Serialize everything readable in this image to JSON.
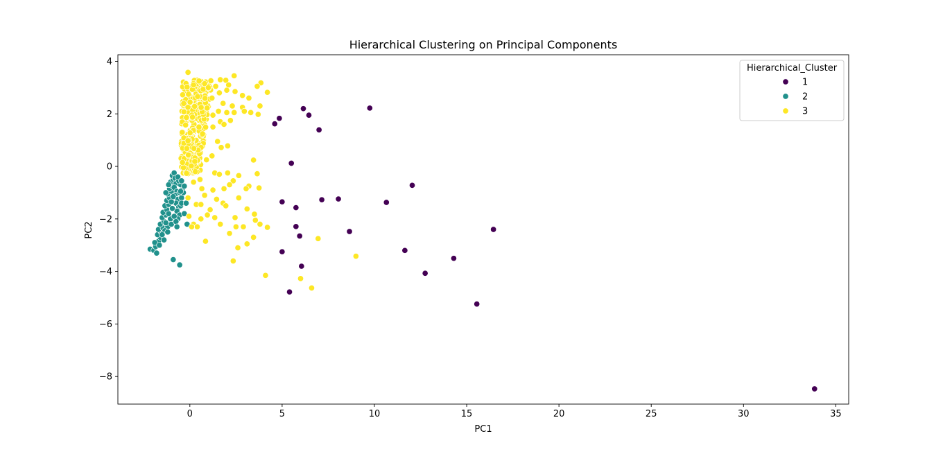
{
  "chart_data": {
    "type": "scatter",
    "title": "Hierarchical Clustering on Principal Components",
    "xlabel": "PC1",
    "ylabel": "PC2",
    "xlim": [
      -3.9,
      35.7
    ],
    "ylim": [
      -9.05,
      4.25
    ],
    "xticks": [
      0,
      5,
      10,
      15,
      20,
      25,
      30,
      35
    ],
    "yticks": [
      -8,
      -6,
      -4,
      -2,
      0,
      2,
      4
    ],
    "xtick_labels": [
      "0",
      "5",
      "10",
      "15",
      "20",
      "25",
      "30",
      "35"
    ],
    "ytick_labels": [
      "−8",
      "−6",
      "−4",
      "−2",
      "0",
      "2",
      "4"
    ],
    "grid": false,
    "legend": {
      "title": "Hierarchical_Cluster",
      "placement": "top-right",
      "entries": [
        "1",
        "2",
        "3"
      ]
    },
    "series": [
      {
        "name": "1",
        "color": "#440154",
        "points": [
          [
            4.6,
            1.62
          ],
          [
            4.85,
            1.83
          ],
          [
            6.15,
            2.2
          ],
          [
            6.45,
            1.95
          ],
          [
            7.0,
            1.39
          ],
          [
            9.75,
            2.22
          ],
          [
            5.5,
            0.12
          ],
          [
            12.05,
            -0.72
          ],
          [
            10.65,
            -1.37
          ],
          [
            8.05,
            -1.24
          ],
          [
            7.15,
            -1.27
          ],
          [
            5.0,
            -1.35
          ],
          [
            5.75,
            -1.57
          ],
          [
            5.75,
            -2.29
          ],
          [
            5.95,
            -2.65
          ],
          [
            8.65,
            -2.48
          ],
          [
            16.45,
            -2.4
          ],
          [
            11.65,
            -3.2
          ],
          [
            5.0,
            -3.25
          ],
          [
            14.3,
            -3.5
          ],
          [
            6.05,
            -3.8
          ],
          [
            12.75,
            -4.07
          ],
          [
            5.4,
            -4.78
          ],
          [
            15.55,
            -5.24
          ],
          [
            33.85,
            -8.47
          ]
        ]
      },
      {
        "name": "2",
        "color": "#21918c",
        "points": [
          [
            -2.15,
            -3.15
          ],
          [
            -1.95,
            -3.2
          ],
          [
            -1.8,
            -3.3
          ],
          [
            -1.85,
            -3.05
          ],
          [
            -1.7,
            -2.85
          ],
          [
            -1.9,
            -2.9
          ],
          [
            -1.6,
            -2.7
          ],
          [
            -1.75,
            -2.6
          ],
          [
            -1.55,
            -2.5
          ],
          [
            -1.7,
            -2.4
          ],
          [
            -1.45,
            -2.35
          ],
          [
            -1.6,
            -2.2
          ],
          [
            -1.4,
            -2.1
          ],
          [
            -1.5,
            -1.95
          ],
          [
            -1.3,
            -1.85
          ],
          [
            -1.45,
            -1.75
          ],
          [
            -1.25,
            -1.65
          ],
          [
            -1.35,
            -1.5
          ],
          [
            -1.15,
            -1.45
          ],
          [
            -1.25,
            -1.3
          ],
          [
            -1.1,
            -1.2
          ],
          [
            -1.2,
            -1.05
          ],
          [
            -1.0,
            -0.95
          ],
          [
            -1.1,
            -0.85
          ],
          [
            -0.95,
            -0.75
          ],
          [
            -1.05,
            -0.6
          ],
          [
            -0.9,
            -0.5
          ],
          [
            -0.95,
            -0.35
          ],
          [
            -0.85,
            -0.25
          ],
          [
            -0.8,
            -0.45
          ],
          [
            -0.75,
            -0.65
          ],
          [
            -0.85,
            -0.8
          ],
          [
            -0.7,
            -0.95
          ],
          [
            -0.8,
            -1.1
          ],
          [
            -0.65,
            -1.25
          ],
          [
            -0.75,
            -1.4
          ],
          [
            -0.6,
            -1.55
          ],
          [
            -0.7,
            -1.7
          ],
          [
            -0.55,
            -1.85
          ],
          [
            -0.65,
            -2.0
          ],
          [
            -0.5,
            -1.5
          ],
          [
            -0.45,
            -1.2
          ],
          [
            -0.55,
            -1.0
          ],
          [
            -0.4,
            -0.85
          ],
          [
            -0.5,
            -0.7
          ],
          [
            -0.35,
            -1.0
          ],
          [
            -0.45,
            -1.4
          ],
          [
            -0.6,
            -0.55
          ],
          [
            -0.65,
            -0.4
          ],
          [
            -1.2,
            -2.3
          ],
          [
            -1.35,
            -2.45
          ],
          [
            -1.05,
            -2.0
          ],
          [
            -1.15,
            -1.8
          ],
          [
            -0.95,
            -1.6
          ],
          [
            -1.0,
            -1.35
          ],
          [
            -0.9,
            -1.15
          ],
          [
            -1.3,
            -2.15
          ],
          [
            -1.5,
            -2.6
          ],
          [
            -1.65,
            -3.0
          ],
          [
            -1.0,
            -2.2
          ],
          [
            -0.85,
            -1.9
          ],
          [
            -0.75,
            -2.1
          ],
          [
            -0.7,
            -2.3
          ],
          [
            -0.3,
            -1.8
          ],
          [
            -0.2,
            -1.4
          ],
          [
            -0.15,
            -2.2
          ],
          [
            -1.2,
            -2.5
          ],
          [
            -1.4,
            -2.8
          ],
          [
            -0.9,
            -3.55
          ],
          [
            -0.55,
            -3.75
          ],
          [
            -0.45,
            -0.55
          ],
          [
            -0.3,
            -0.75
          ],
          [
            -0.5,
            -0.95
          ],
          [
            -1.15,
            -0.7
          ],
          [
            -1.3,
            -1.0
          ]
        ]
      },
      {
        "name": "3",
        "color": "#fde725",
        "points": [
          [
            -0.1,
            3.58
          ],
          [
            0.5,
            3.25
          ],
          [
            0.8,
            3.15
          ],
          [
            0.2,
            3.1
          ],
          [
            -0.15,
            3.02
          ],
          [
            1.0,
            3.0
          ],
          [
            1.65,
            3.3
          ],
          [
            1.95,
            3.28
          ],
          [
            2.4,
            3.45
          ],
          [
            3.85,
            3.18
          ],
          [
            3.65,
            3.05
          ],
          [
            2.1,
            3.1
          ],
          [
            1.4,
            3.05
          ],
          [
            4.2,
            2.82
          ],
          [
            3.2,
            2.6
          ],
          [
            2.85,
            2.7
          ],
          [
            2.45,
            2.85
          ],
          [
            2.0,
            2.9
          ],
          [
            1.6,
            2.8
          ],
          [
            1.2,
            2.6
          ],
          [
            1.8,
            2.4
          ],
          [
            2.3,
            2.3
          ],
          [
            2.85,
            2.25
          ],
          [
            3.8,
            2.3
          ],
          [
            3.3,
            2.05
          ],
          [
            2.95,
            2.1
          ],
          [
            2.4,
            2.05
          ],
          [
            2.0,
            2.05
          ],
          [
            1.55,
            2.1
          ],
          [
            1.25,
            1.95
          ],
          [
            3.7,
            1.98
          ],
          [
            2.2,
            1.75
          ],
          [
            1.65,
            1.7
          ],
          [
            1.25,
            1.5
          ],
          [
            1.85,
            1.6
          ],
          [
            1.5,
            0.95
          ],
          [
            1.7,
            0.72
          ],
          [
            2.05,
            0.78
          ],
          [
            1.2,
            0.4
          ],
          [
            0.9,
            0.25
          ],
          [
            -0.4,
            0.15
          ],
          [
            0.3,
            -0.2
          ],
          [
            0.55,
            -0.5
          ],
          [
            1.35,
            -0.25
          ],
          [
            1.6,
            -0.3
          ],
          [
            2.05,
            -0.25
          ],
          [
            2.65,
            -0.35
          ],
          [
            2.35,
            -0.55
          ],
          [
            2.15,
            -0.7
          ],
          [
            1.85,
            -0.85
          ],
          [
            1.25,
            -0.9
          ],
          [
            0.65,
            -0.85
          ],
          [
            0.2,
            -0.6
          ],
          [
            0.8,
            -1.1
          ],
          [
            1.45,
            -1.25
          ],
          [
            1.8,
            -1.4
          ],
          [
            1.95,
            -1.5
          ],
          [
            2.65,
            -1.2
          ],
          [
            3.2,
            -0.75
          ],
          [
            3.05,
            -0.85
          ],
          [
            3.65,
            -0.28
          ],
          [
            3.45,
            0.24
          ],
          [
            3.75,
            -0.82
          ],
          [
            3.5,
            -1.82
          ],
          [
            3.1,
            -1.62
          ],
          [
            3.55,
            -2.05
          ],
          [
            3.8,
            -2.2
          ],
          [
            4.2,
            -2.32
          ],
          [
            2.9,
            -2.3
          ],
          [
            2.5,
            -2.3
          ],
          [
            2.45,
            -1.95
          ],
          [
            2.15,
            -2.55
          ],
          [
            1.65,
            -2.2
          ],
          [
            1.35,
            -1.95
          ],
          [
            0.95,
            -1.85
          ],
          [
            0.6,
            -2.0
          ],
          [
            0.2,
            -2.2
          ],
          [
            0.4,
            -2.3
          ],
          [
            0.85,
            -2.85
          ],
          [
            2.6,
            -3.1
          ],
          [
            3.1,
            -2.95
          ],
          [
            3.45,
            -2.7
          ],
          [
            2.35,
            -3.6
          ],
          [
            4.1,
            -4.15
          ],
          [
            6.0,
            -4.27
          ],
          [
            6.6,
            -4.63
          ],
          [
            6.95,
            -2.75
          ],
          [
            9.0,
            -3.42
          ],
          [
            0.1,
            -2.3
          ],
          [
            -0.05,
            -1.9
          ],
          [
            -0.1,
            -1.2
          ],
          [
            0.35,
            -1.45
          ],
          [
            0.6,
            -1.45
          ],
          [
            1.1,
            -1.65
          ]
        ],
        "dense_cluster": {
          "x_range": [
            -0.5,
            1.0
          ],
          "y_range": [
            -0.3,
            3.3
          ],
          "count": 320
        }
      }
    ]
  }
}
